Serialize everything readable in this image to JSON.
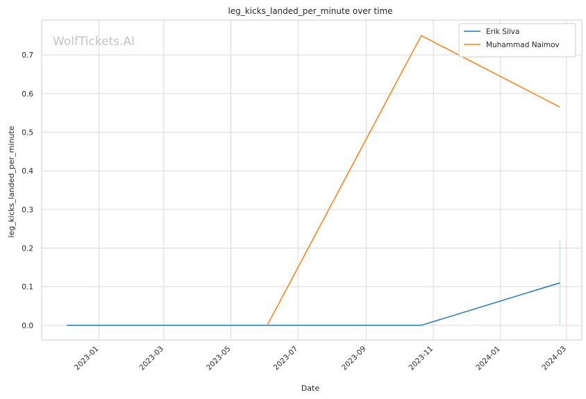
{
  "chart_data": {
    "type": "line",
    "title": "leg_kicks_landed_per_minute over time",
    "xlabel": "Date",
    "ylabel": "leg_kicks_landed_per_minute",
    "watermark": "WolfTickets.AI",
    "grid": true,
    "legend_placement": "top-right",
    "xlim": [
      "2022-11-10",
      "2024-03-15"
    ],
    "ylim": [
      -0.038,
      0.79
    ],
    "x_ticks": [
      "2023-01",
      "2023-03",
      "2023-05",
      "2023-07",
      "2023-09",
      "2023-11",
      "2024-01",
      "2024-03"
    ],
    "y_ticks": [
      "0.0",
      "0.1",
      "0.2",
      "0.3",
      "0.4",
      "0.5",
      "0.6",
      "0.7"
    ],
    "series": [
      {
        "name": "Erik Silva",
        "color": "#1f77b4",
        "x": [
          "2022-12-03",
          "2023-10-21",
          "2024-02-24"
        ],
        "y": [
          0.0,
          0.0,
          0.11
        ]
      },
      {
        "name": "Muhammad Naimov",
        "color": "#ff7f0e",
        "x": [
          "2023-06-03",
          "2023-10-21",
          "2024-02-24"
        ],
        "y": [
          0.0,
          0.75,
          0.565
        ]
      }
    ],
    "annotations": [
      {
        "type": "vertical-segment",
        "x": "2024-02-24",
        "y": [
          0.0,
          0.22
        ],
        "color": "#b9dcd6"
      }
    ]
  }
}
